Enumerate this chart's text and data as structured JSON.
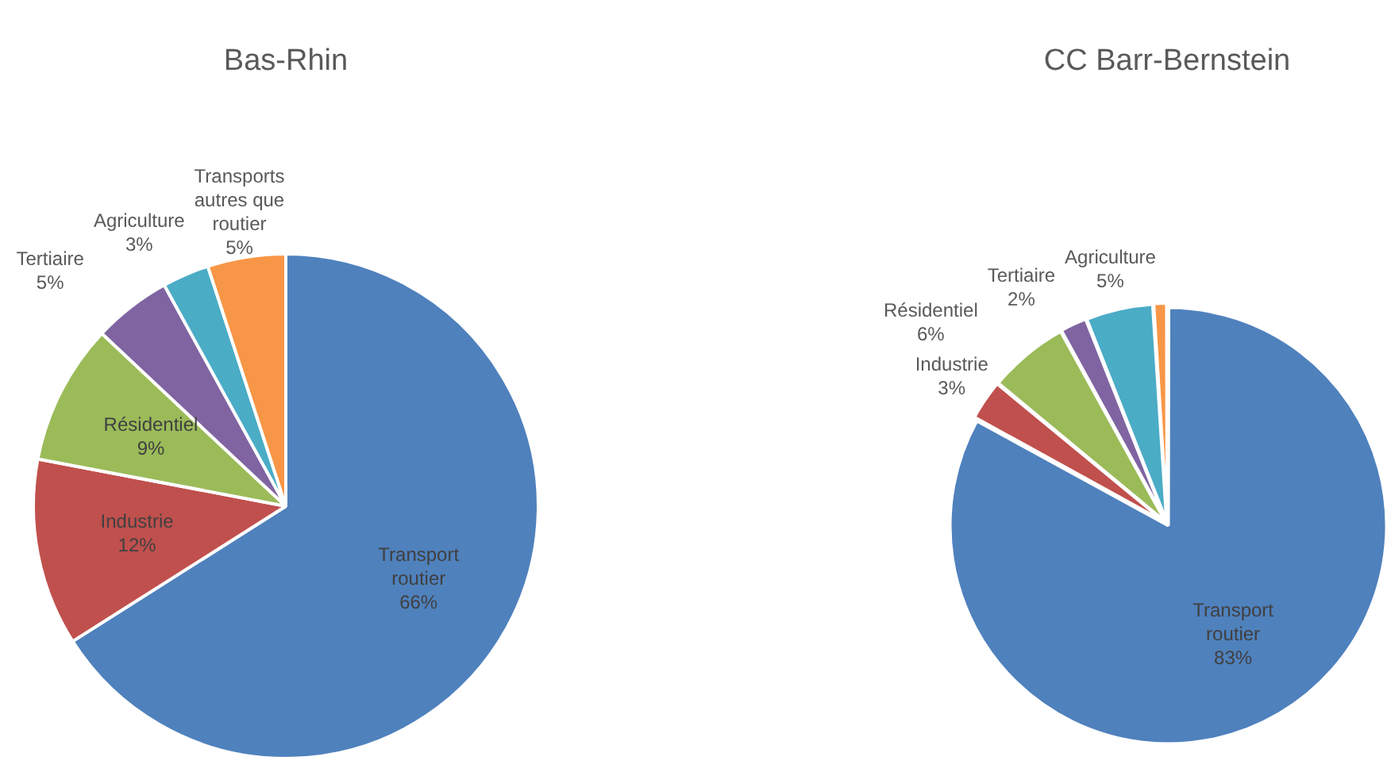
{
  "chart_data": [
    {
      "type": "pie",
      "title": "Bas-Rhin",
      "categories": [
        "Transport routier",
        "Industrie",
        "Résidentiel",
        "Tertiaire",
        "Agriculture",
        "Transports autres que routier"
      ],
      "values": [
        66,
        12,
        9,
        5,
        3,
        5
      ],
      "value_labels": [
        "66%",
        "12%",
        "9%",
        "5%",
        "3%",
        "5%"
      ],
      "colors": [
        "#4f81bd",
        "#c0504d",
        "#9bbb59",
        "#8064a2",
        "#4bacc6",
        "#f79646"
      ]
    },
    {
      "type": "pie",
      "title": "CC Barr-Bernstein",
      "categories": [
        "Transport routier",
        "Industrie",
        "Résidentiel",
        "Tertiaire",
        "Agriculture",
        null
      ],
      "values": [
        83,
        3,
        6,
        2,
        5,
        1
      ],
      "value_labels": [
        "83%",
        "3%",
        "6%",
        "2%",
        "5%",
        null
      ],
      "colors": [
        "#4f81bd",
        "#c0504d",
        "#9bbb59",
        "#8064a2",
        "#4bacc6",
        "#f79646"
      ]
    }
  ]
}
